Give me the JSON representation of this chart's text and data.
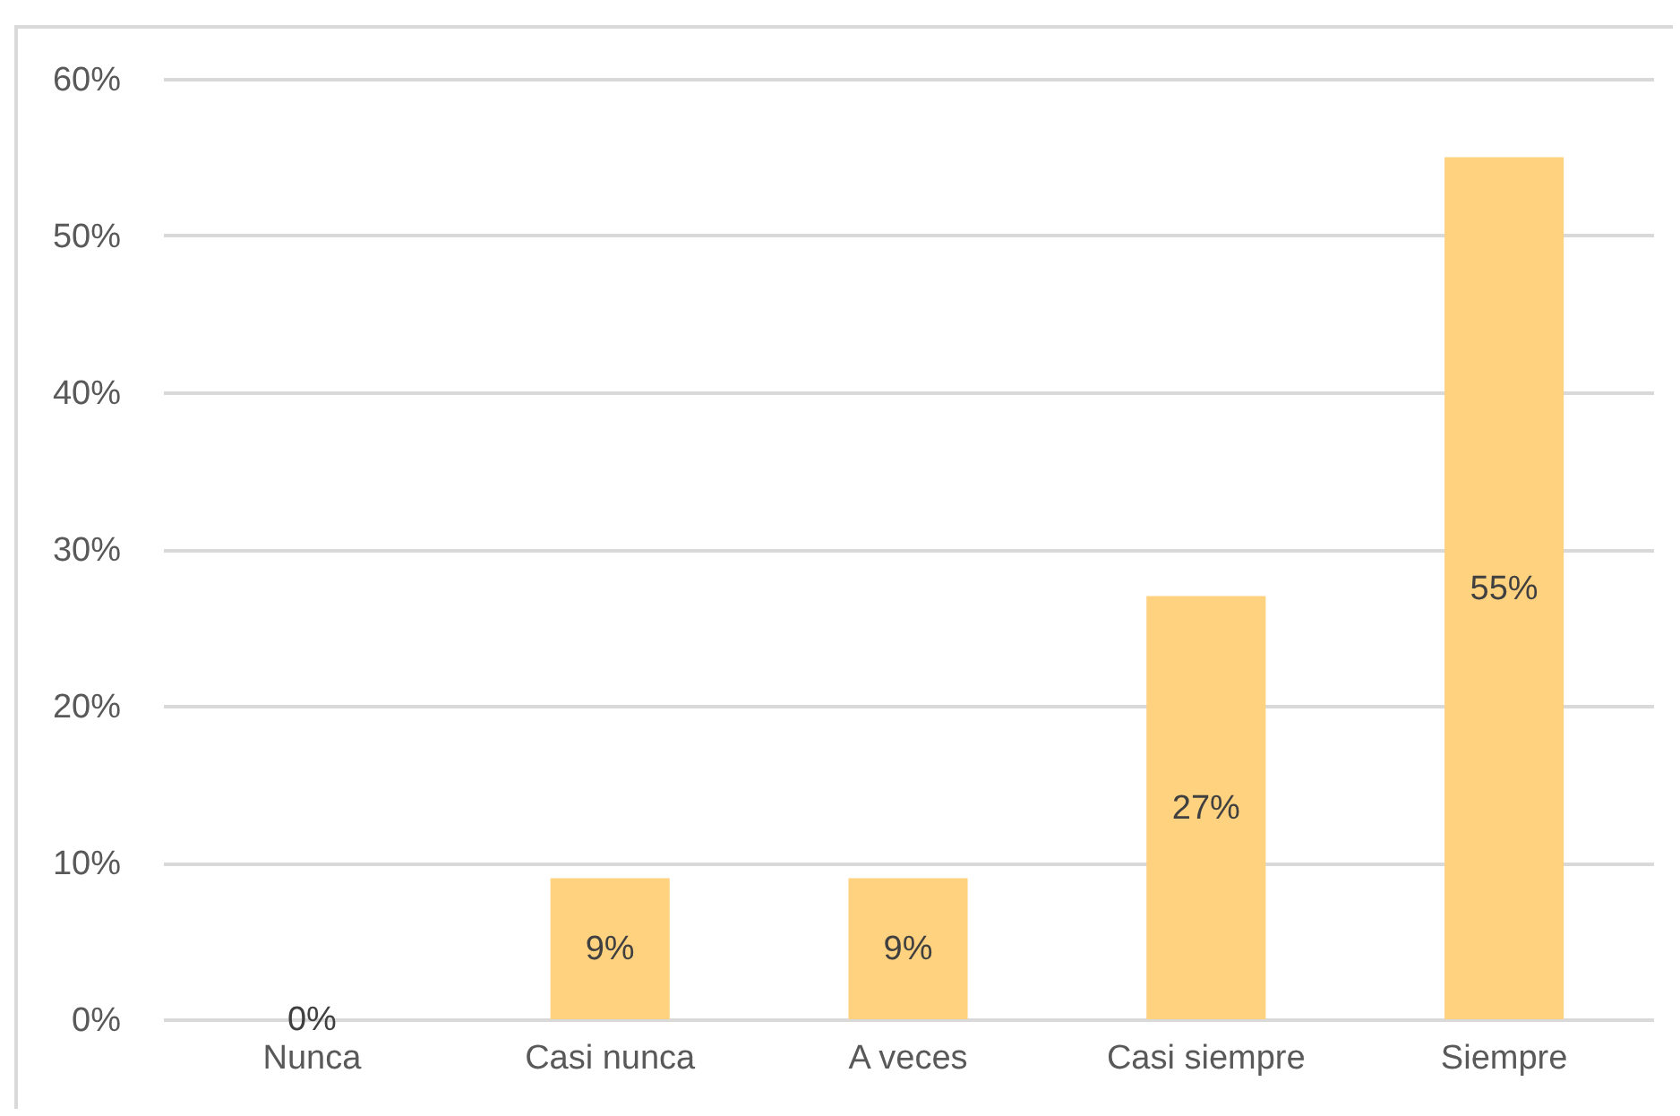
{
  "chart_data": {
    "type": "bar",
    "categories": [
      "Nunca",
      "Casi nunca",
      "A veces",
      "Casi siempre",
      "Siempre"
    ],
    "values": [
      0,
      9,
      9,
      27,
      55
    ],
    "color": "#ffd280",
    "ylim": [
      0,
      60
    ],
    "yticks": [
      {
        "value": 0,
        "label": "0%"
      },
      {
        "value": 10,
        "label": "10%"
      },
      {
        "value": 20,
        "label": "20%"
      },
      {
        "value": 30,
        "label": "30%"
      },
      {
        "value": 40,
        "label": "40%"
      },
      {
        "value": 50,
        "label": "50%"
      },
      {
        "value": 60,
        "label": "60%"
      }
    ],
    "grid": "y",
    "value_labels": [
      "0%",
      "9%",
      "9%",
      "27%",
      "55%"
    ]
  }
}
